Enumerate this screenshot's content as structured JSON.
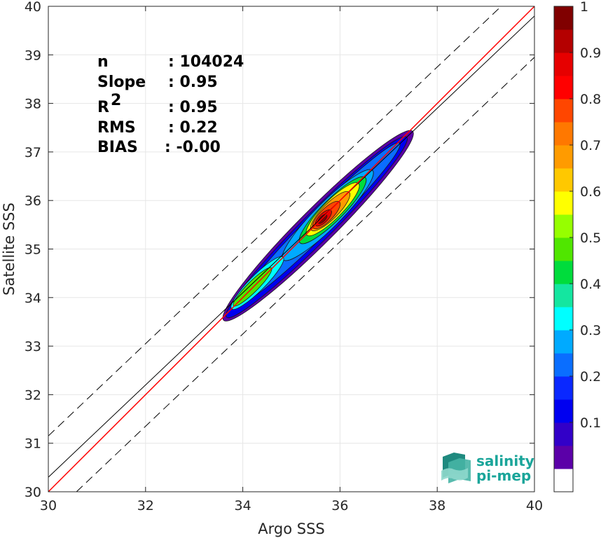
{
  "chart_data": {
    "type": "contour-density",
    "xlabel": "Argo SSS",
    "ylabel": "Satellite SSS",
    "xlim": [
      30,
      40
    ],
    "ylim": [
      30,
      40
    ],
    "xticks": [
      30,
      32,
      34,
      36,
      38,
      40
    ],
    "yticks": [
      30,
      31,
      32,
      33,
      34,
      35,
      36,
      37,
      38,
      39,
      40
    ],
    "grid": true,
    "stats": [
      {
        "name": "n",
        "value": ": 104024"
      },
      {
        "name": "Slope",
        "value": ": 0.95"
      },
      {
        "name": "R",
        "sup": "2",
        "value": ": 0.95"
      },
      {
        "name": "RMS",
        "value": ": 0.22"
      },
      {
        "name": "BIAS",
        "value": ": -0.00"
      }
    ],
    "lines": {
      "one_to_one": {
        "slope": 1,
        "intercept": 0,
        "color": "#ff0000"
      },
      "regression": {
        "slope": 0.95,
        "intercept": 1.8,
        "color": "#000000"
      },
      "bounds": {
        "slope": 0.95,
        "offsets": [
          0.85,
          -0.85
        ],
        "color": "#000000",
        "style": "dashed"
      }
    },
    "density_peaks": [
      {
        "x": 35.65,
        "y": 35.62,
        "level": 1.0
      },
      {
        "x": 34.5,
        "y": 34.55,
        "level": 0.55
      },
      {
        "x": 33.9,
        "y": 33.95,
        "level": 0.5
      }
    ],
    "colorbar": {
      "ticks": [
        0.1,
        0.2,
        0.3,
        0.4,
        0.5,
        0.6,
        0.7,
        0.8,
        0.9,
        1
      ],
      "tick_labels": [
        "0.1",
        "0.2",
        "0.3",
        "0.4",
        "0.5",
        "0.6",
        "0.7",
        "0.8",
        "0.9",
        "1"
      ],
      "range": [
        0,
        1
      ],
      "colors": [
        "#ffffff",
        "#5b00a8",
        "#3200c8",
        "#0000f0",
        "#0a28ff",
        "#0a6eff",
        "#00aaff",
        "#00ffff",
        "#14e6a0",
        "#00dc3c",
        "#50e600",
        "#96ff00",
        "#ffff00",
        "#ffc800",
        "#ff9b00",
        "#ff7800",
        "#ff4600",
        "#ff0000",
        "#e60000",
        "#b40000",
        "#800000"
      ]
    }
  },
  "logo": {
    "line1": "salinity",
    "line2": "pi-mep"
  }
}
